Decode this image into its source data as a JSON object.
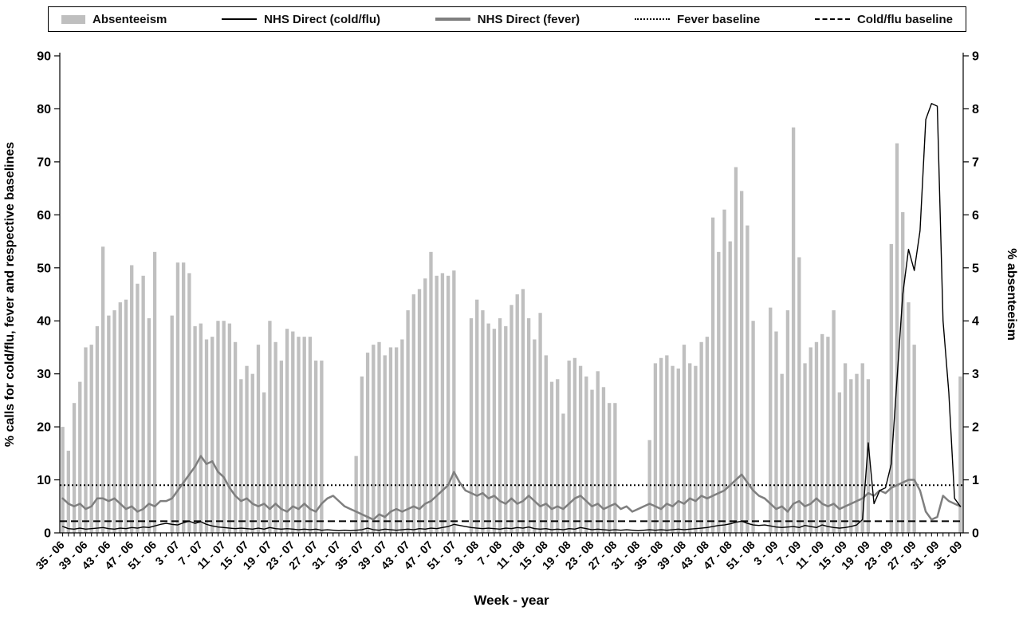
{
  "legend": {
    "items": [
      {
        "label": "Absenteeism",
        "swatch": "bar",
        "color": "#bfbfbf"
      },
      {
        "label": "NHS Direct (cold/flu)",
        "swatch": "line-solid",
        "color": "#000000"
      },
      {
        "label": "NHS Direct (fever)",
        "swatch": "line-gray",
        "color": "#7f7f7f"
      },
      {
        "label": "Fever baseline",
        "swatch": "line-dotted",
        "color": "#000000"
      },
      {
        "label": "Cold/flu baseline",
        "swatch": "line-dashed",
        "color": "#000000"
      }
    ]
  },
  "chart_data": {
    "type": "bar",
    "subtype": "bar+line combo, dual axis",
    "title": "",
    "xlabel": "Week - year",
    "ylabel_left": "% calls for cold/flu, fever and respective baselines",
    "ylabel_right": "% absenteeism",
    "y_left": {
      "min": 0,
      "max": 90,
      "step": 10
    },
    "y_right": {
      "min": 0,
      "max": 9,
      "step": 1
    },
    "n_points": 157,
    "tick_every": 4,
    "x_tick_labels": [
      "35 - 06",
      "39 - 06",
      "43 - 06",
      "47 - 06",
      "51 - 06",
      "3 - 07",
      "7 - 07",
      "11 - 07",
      "15 - 07",
      "19 - 07",
      "23 - 07",
      "27 - 07",
      "31 - 07",
      "35 - 07",
      "39 - 07",
      "43 - 07",
      "47 - 07",
      "51 - 07",
      "3 - 08",
      "7 - 08",
      "11 - 08",
      "15 - 08",
      "19 - 08",
      "23 - 08",
      "27 - 08",
      "31 - 08",
      "35 - 08",
      "39 - 08",
      "43 - 08",
      "47 - 08",
      "51 - 08",
      "3 - 09",
      "7 - 09",
      "11 - 09",
      "15 - 09",
      "19 - 09",
      "23 - 09",
      "27 - 09",
      "31 - 09",
      "35 - 09"
    ],
    "series": [
      {
        "name": "Absenteeism",
        "type": "bar",
        "axis": "right",
        "color": "#bfbfbf",
        "values": [
          2.0,
          1.55,
          2.45,
          2.85,
          3.5,
          3.55,
          3.9,
          5.4,
          4.1,
          4.2,
          4.35,
          4.4,
          5.05,
          4.7,
          4.85,
          4.05,
          5.3,
          0,
          0,
          4.1,
          5.1,
          5.1,
          4.9,
          3.9,
          3.95,
          3.65,
          3.7,
          4.0,
          4.0,
          3.95,
          3.6,
          2.9,
          3.15,
          3.0,
          3.55,
          2.65,
          4.0,
          3.6,
          3.25,
          3.85,
          3.8,
          3.7,
          3.7,
          3.7,
          3.25,
          3.25,
          0,
          0,
          0,
          0,
          0,
          1.45,
          2.95,
          3.4,
          3.55,
          3.6,
          3.35,
          3.5,
          3.5,
          3.65,
          4.2,
          4.5,
          4.6,
          4.8,
          5.3,
          4.85,
          4.9,
          4.85,
          4.95,
          0,
          0,
          4.05,
          4.4,
          4.2,
          3.95,
          3.85,
          4.05,
          3.9,
          4.3,
          4.5,
          4.6,
          4.05,
          3.65,
          4.15,
          3.35,
          2.85,
          2.9,
          2.25,
          3.25,
          3.3,
          3.15,
          2.95,
          2.7,
          3.05,
          2.75,
          2.45,
          2.45,
          0,
          0,
          0,
          0,
          0,
          1.75,
          3.2,
          3.3,
          3.35,
          3.15,
          3.1,
          3.55,
          3.2,
          3.15,
          3.6,
          3.7,
          5.95,
          5.3,
          6.1,
          5.5,
          6.9,
          6.45,
          5.8,
          4.0,
          0,
          0,
          4.25,
          3.8,
          3.0,
          4.2,
          7.65,
          5.2,
          3.2,
          3.5,
          3.6,
          3.75,
          3.7,
          4.2,
          2.65,
          3.2,
          2.9,
          3.0,
          3.2,
          2.9,
          0,
          0,
          0,
          5.45,
          7.35,
          6.05,
          4.35,
          3.55,
          0,
          0,
          0,
          0,
          0,
          0,
          0,
          2.95
        ]
      },
      {
        "name": "NHS Direct (cold/flu)",
        "type": "line",
        "axis": "left",
        "color": "#000000",
        "values": [
          1.2,
          0.8,
          0.7,
          0.9,
          0.7,
          0.8,
          0.9,
          1.0,
          0.8,
          0.7,
          0.9,
          0.8,
          1.0,
          0.9,
          1.1,
          1.0,
          1.3,
          1.6,
          1.8,
          1.6,
          1.5,
          1.9,
          2.2,
          1.8,
          2.1,
          1.6,
          1.3,
          1.1,
          1.0,
          0.9,
          0.8,
          0.9,
          0.8,
          0.7,
          0.9,
          0.7,
          1.0,
          0.8,
          0.7,
          0.8,
          0.7,
          0.6,
          0.7,
          0.6,
          0.7,
          0.5,
          0.6,
          0.5,
          0.4,
          0.5,
          0.4,
          0.5,
          0.6,
          0.9,
          0.6,
          0.5,
          0.7,
          0.6,
          0.5,
          0.6,
          0.7,
          0.6,
          0.8,
          0.7,
          0.9,
          0.8,
          1.0,
          1.2,
          1.6,
          1.4,
          1.2,
          1.0,
          0.9,
          0.8,
          0.9,
          0.8,
          0.7,
          0.9,
          0.8,
          1.0,
          0.9,
          1.1,
          0.8,
          0.7,
          0.8,
          0.6,
          0.7,
          0.6,
          0.8,
          0.7,
          1.0,
          0.8,
          0.6,
          0.7,
          0.6,
          0.5,
          0.6,
          0.5,
          0.6,
          0.5,
          0.4,
          0.5,
          0.6,
          0.5,
          0.6,
          0.5,
          0.6,
          0.7,
          0.6,
          0.7,
          0.8,
          0.9,
          1.0,
          1.2,
          1.4,
          1.5,
          1.7,
          2.0,
          2.2,
          1.8,
          1.5,
          1.4,
          1.5,
          1.3,
          1.1,
          1.0,
          1.1,
          1.2,
          1.0,
          1.4,
          1.2,
          1.0,
          1.5,
          1.2,
          1.0,
          0.9,
          1.0,
          1.2,
          1.5,
          2.5,
          17.0,
          5.5,
          8.0,
          8.5,
          13.0,
          29.0,
          45.0,
          53.5,
          49.5,
          57.0,
          78.0,
          81.0,
          80.5,
          40.0,
          26.5,
          6.5,
          5.0
        ]
      },
      {
        "name": "NHS Direct (fever)",
        "type": "line",
        "axis": "left",
        "color": "#7f7f7f",
        "values": [
          6.5,
          5.5,
          5.0,
          5.5,
          4.5,
          5.0,
          6.5,
          6.5,
          6.0,
          6.5,
          5.5,
          4.5,
          5.0,
          4.0,
          4.5,
          5.5,
          5.0,
          6.0,
          6.0,
          6.5,
          8.0,
          9.5,
          11.0,
          12.5,
          14.5,
          13.0,
          13.5,
          11.5,
          10.5,
          8.5,
          7.0,
          6.0,
          6.5,
          5.5,
          5.0,
          5.5,
          4.5,
          5.5,
          4.5,
          4.0,
          5.0,
          4.5,
          5.5,
          4.5,
          4.0,
          5.5,
          6.5,
          7.0,
          6.0,
          5.0,
          4.5,
          4.0,
          3.5,
          3.0,
          2.5,
          3.5,
          3.0,
          4.0,
          4.5,
          4.0,
          4.5,
          5.0,
          4.5,
          5.5,
          6.0,
          7.0,
          8.0,
          9.0,
          11.5,
          9.5,
          8.0,
          7.5,
          7.0,
          7.5,
          6.5,
          7.0,
          6.0,
          5.5,
          6.5,
          5.5,
          6.0,
          7.0,
          6.0,
          5.0,
          5.5,
          4.5,
          5.0,
          4.5,
          5.5,
          6.5,
          7.0,
          6.0,
          5.0,
          5.5,
          4.5,
          5.0,
          5.5,
          4.5,
          5.0,
          4.0,
          4.5,
          5.0,
          5.5,
          5.0,
          4.5,
          5.5,
          5.0,
          6.0,
          5.5,
          6.5,
          6.0,
          7.0,
          6.5,
          7.0,
          7.5,
          8.0,
          9.0,
          10.0,
          11.0,
          9.5,
          8.0,
          7.0,
          6.5,
          5.5,
          4.5,
          5.0,
          4.0,
          5.5,
          6.0,
          5.0,
          5.5,
          6.5,
          5.5,
          5.0,
          5.5,
          4.5,
          5.0,
          5.5,
          6.0,
          6.5,
          7.5,
          7.0,
          8.0,
          7.5,
          8.5,
          9.0,
          9.5,
          10.0,
          10.0,
          8.0,
          4.0,
          2.5,
          3.0,
          7.0,
          6.0,
          5.5,
          5.0
        ]
      },
      {
        "name": "Fever baseline",
        "type": "hline",
        "axis": "left",
        "style": "dotted",
        "color": "#000000",
        "value": 9.0
      },
      {
        "name": "Cold/flu baseline",
        "type": "hline",
        "axis": "left",
        "style": "dashed",
        "color": "#000000",
        "value": 2.2
      }
    ]
  }
}
